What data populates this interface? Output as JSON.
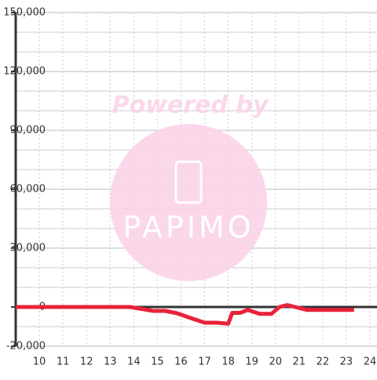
{
  "chart_data": {
    "type": "line",
    "watermark": {
      "title": "Powered by",
      "brand": "PAPIMO"
    },
    "x": [
      9,
      13.83,
      14.33,
      14.83,
      15.33,
      15.83,
      16.5,
      17,
      17.5,
      18,
      18.17,
      18.5,
      18.83,
      19.33,
      19.83,
      20.17,
      20.5,
      20.83,
      21.33,
      22.33,
      23.33
    ],
    "values": [
      0,
      0,
      -1000,
      -2000,
      -2000,
      -3200,
      -6000,
      -8000,
      -8000,
      -8500,
      -3000,
      -3000,
      -1500,
      -3500,
      -3500,
      0,
      1000,
      0,
      -1500,
      -1500,
      -1500
    ],
    "color": "#e8233a",
    "xlim": [
      9,
      24.3
    ],
    "xticks": [
      10,
      11,
      12,
      13,
      14,
      15,
      16,
      17,
      18,
      19,
      20,
      21,
      22,
      23,
      24
    ],
    "ylim": [
      -20000,
      150000
    ],
    "yticks": [
      {
        "value": -20000,
        "label": "-20,000"
      },
      0,
      {
        "value": 30000,
        "label": "30,000"
      },
      {
        "value": 60000,
        "label": "60,000"
      },
      {
        "value": 90000,
        "label": "90,000"
      },
      {
        "value": 120000,
        "label": "120,000"
      },
      {
        "value": 150000,
        "label": "150,000"
      }
    ],
    "yminor": [
      -10000,
      10000,
      20000,
      40000,
      50000,
      70000,
      80000,
      100000,
      110000,
      130000,
      140000
    ],
    "grid": true
  }
}
